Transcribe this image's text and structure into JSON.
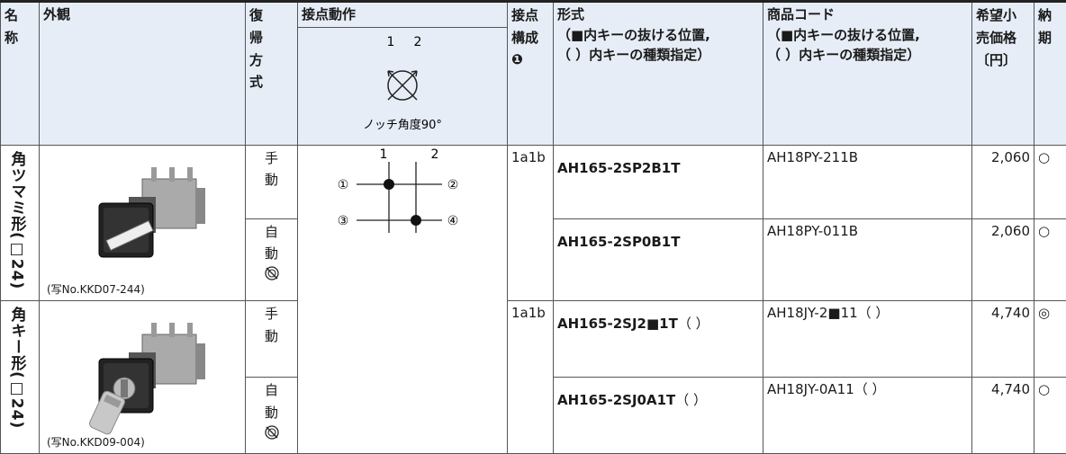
{
  "header": {
    "name": "名称",
    "appearance": "外観",
    "return_type": "復帰方式",
    "contact_action": "接点動作",
    "diagram_terminals": [
      "1",
      "2"
    ],
    "notch_angle": "ノッチ角度90°",
    "contact_config": "接点構成",
    "contact_config_note": "❶",
    "model": "形式",
    "model_notes": [
      "（■内キーの抜ける位置,",
      "（ ）内キーの種類指定）"
    ],
    "product_code": "商品コード",
    "product_code_notes": [
      "（■内キーの抜ける位置,",
      "（ ）内キーの種類指定）"
    ],
    "price": "希望小売価格〔円〕",
    "delivery": "納期"
  },
  "contact_diagram": {
    "terminals": [
      "1",
      "2"
    ],
    "contacts": [
      "①",
      "②",
      "③",
      "④"
    ]
  },
  "groups": [
    {
      "name": "角ツマミ形(□24)",
      "photo_caption": "(写No.KKD07-244)",
      "rows": [
        {
          "return_type": "手動",
          "contact_config": "1a1b",
          "model": "AH165-2SP2B1T",
          "model_suffix": "",
          "product_code": "AH18PY-211B",
          "price": "2,060",
          "delivery": "○"
        },
        {
          "return_type": "自動",
          "model": "AH165-2SP0B1T",
          "model_suffix": "",
          "product_code": "AH18PY-011B",
          "price": "2,060",
          "delivery": "○"
        }
      ]
    },
    {
      "name": "角キー形(□24)",
      "photo_caption": "(写No.KKD09-004)",
      "rows": [
        {
          "return_type": "手動",
          "contact_config": "1a1b",
          "model": "AH165-2SJ2■1T",
          "model_suffix": "（ ）",
          "product_code": "AH18JY-2■11（ ）",
          "price": "4,740",
          "delivery": "◎"
        },
        {
          "return_type": "自動",
          "model": "AH165-2SJ0A1T",
          "model_suffix": "（ ）",
          "product_code": "AH18JY-0A11（ ）",
          "price": "4,740",
          "delivery": "○"
        }
      ]
    }
  ]
}
